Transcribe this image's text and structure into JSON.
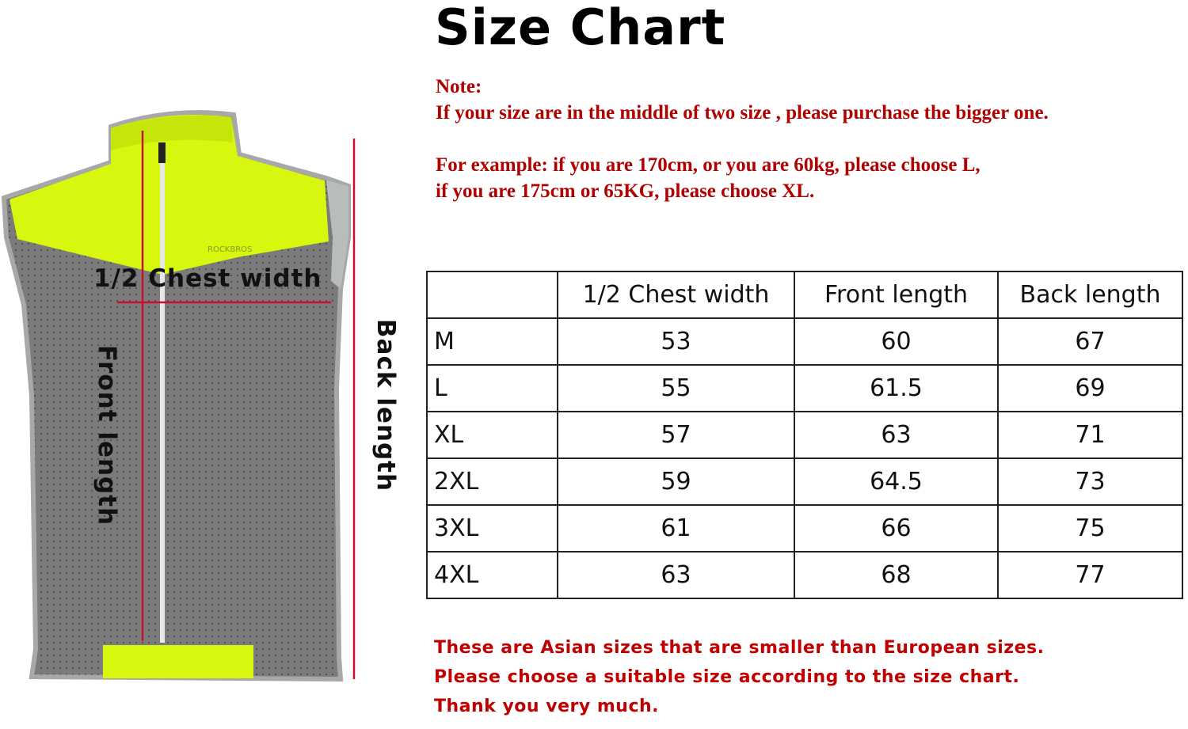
{
  "title": "Size Chart",
  "colors": {
    "note_red": "#b00000",
    "vest_yellow": "#d8f70e",
    "vest_gray": "#7d7d7d",
    "measure_line": "#c8102e"
  },
  "diagram": {
    "chest_label": "1/2 Chest width",
    "front_label": "Front length",
    "back_label": "Back length",
    "logo_text": "ROCKBROS"
  },
  "notes": {
    "heading": "Note:",
    "line1": "If your size are in the middle of two size , please purchase the bigger one.",
    "line2": "For example: if you are 170cm, or you are 60kg, please choose L,",
    "line3": "if you are 175cm or 65KG, please choose XL."
  },
  "table": {
    "headers": [
      "",
      "1/2 Chest width",
      "Front length",
      "Back length"
    ],
    "rows": [
      [
        "M",
        "53",
        "60",
        "67"
      ],
      [
        "L",
        "55",
        "61.5",
        "69"
      ],
      [
        "XL",
        "57",
        "63",
        "71"
      ],
      [
        "2XL",
        "59",
        "64.5",
        "73"
      ],
      [
        "3XL",
        "61",
        "66",
        "75"
      ],
      [
        "4XL",
        "63",
        "68",
        "77"
      ]
    ]
  },
  "footer": {
    "line1": "These are Asian sizes that are smaller than European sizes.",
    "line2": "Please choose a suitable size according to the size chart.",
    "line3": "Thank you very much."
  }
}
